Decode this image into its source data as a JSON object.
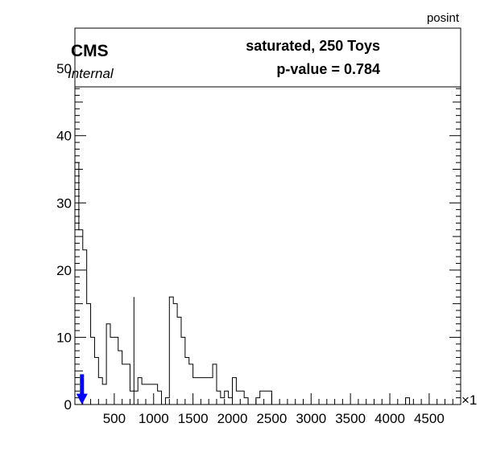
{
  "chart_data": {
    "type": "histogram",
    "title": "posint",
    "xlim": [
      0,
      4900
    ],
    "ylim": [
      0,
      56
    ],
    "x_exponent_label": "×1",
    "x_ticks": [
      500,
      1000,
      1500,
      2000,
      2500,
      3000,
      3500,
      4000,
      4500
    ],
    "y_ticks": [
      0,
      10,
      20,
      30,
      40,
      50
    ],
    "bin_width": 50,
    "counts": [
      36,
      26,
      23,
      15,
      10,
      7,
      4,
      3,
      12,
      10,
      10,
      8,
      6,
      6,
      2,
      2,
      4,
      3,
      3,
      3,
      3,
      2,
      0,
      1,
      16,
      15,
      13,
      10,
      7,
      6,
      4,
      4,
      4,
      4,
      4,
      6,
      2,
      1,
      4,
      1,
      4,
      2,
      2,
      1,
      0,
      0,
      1,
      1,
      2,
      0,
      0,
      0,
      0,
      0,
      0,
      0,
      0,
      0,
      0,
      0,
      0,
      0,
      0,
      0,
      0,
      0,
      0,
      0,
      0,
      0,
      0,
      0,
      0,
      0,
      0,
      0,
      0,
      0,
      0,
      0,
      0,
      0,
      0,
      0,
      0,
      0,
      0,
      0,
      0,
      0,
      0,
      0,
      0,
      0,
      0,
      0,
      0,
      0
    ],
    "extra_bins": [
      {
        "start": 1800,
        "count": 2
      },
      {
        "start": 1900,
        "count": 2
      },
      {
        "start": 2300,
        "count": 1
      },
      {
        "start": 2350,
        "count": 2
      },
      {
        "start": 2450,
        "count": 2
      },
      {
        "start": 4200,
        "count": 1
      }
    ],
    "vertical_line_x": 750,
    "observed_value": 90,
    "arrow_color": "#0000ff",
    "legend": {
      "cms": "CMS",
      "internal": "Internal",
      "line1": "saturated, 250 Toys",
      "line2": "p-value = 0.784"
    }
  }
}
